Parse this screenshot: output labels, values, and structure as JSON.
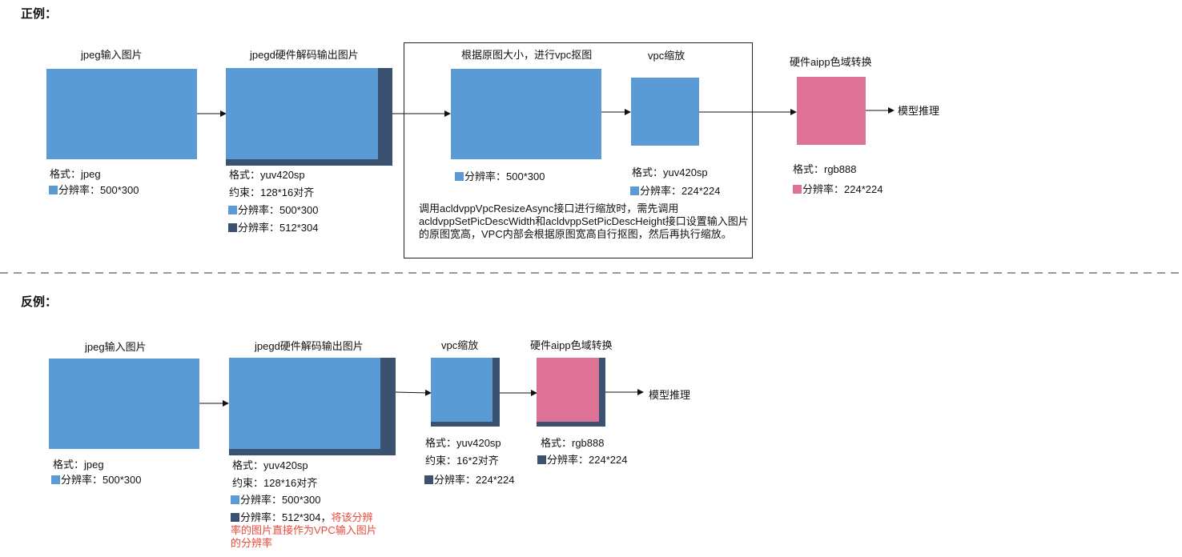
{
  "positive": {
    "heading": "正例：",
    "jpeg_title": "jpeg输入图片",
    "jpeg_format": "格式：jpeg",
    "jpeg_res": "分辨率：500*300",
    "jpegd_title": "jpegd硬件解码输出图片",
    "jpegd_format": "格式：yuv420sp",
    "jpegd_constraint": "约束：128*16对齐",
    "jpegd_res_a": "分辨率：500*300",
    "jpegd_res_b": "分辨率：512*304",
    "crop_title": "根据原图大小，进行vpc抠图",
    "crop_res": "分辨率：500*300",
    "vpc_title": "vpc缩放",
    "vpc_format": "格式：yuv420sp",
    "vpc_res": "分辨率：224*224",
    "vpc_note": "调用acldvppVpcResizeAsync接口进行缩放时，需先调用acldvppSetPicDescWidth和acldvppSetPicDescHeight接口设置输入图片的原图宽高，VPC内部会根据原图宽高自行抠图，然后再执行缩放。",
    "aipp_title": "硬件aipp色域转换",
    "aipp_format": "格式：rgb888",
    "aipp_res": "分辨率：224*224",
    "infer": "模型推理"
  },
  "negative": {
    "heading": "反例：",
    "jpeg_title": "jpeg输入图片",
    "jpeg_format": "格式：jpeg",
    "jpeg_res": "分辨率：500*300",
    "jpegd_title": "jpegd硬件解码输出图片",
    "jpegd_format": "格式：yuv420sp",
    "jpegd_constraint": "约束：128*16对齐",
    "jpegd_res_a": "分辨率：500*300",
    "jpegd_res_b": "分辨率：512*304，",
    "jpegd_warn": "将该分辨率的图片直接作为VPC输入图片的分辨率",
    "vpc_title": "vpc缩放",
    "vpc_format": "格式：yuv420sp",
    "vpc_constraint": "约束：16*2对齐",
    "vpc_res": "分辨率：224*224",
    "aipp_title": "硬件aipp色域转换",
    "aipp_format": "格式：rgb888",
    "aipp_res": "分辨率：224*224",
    "infer": "模型推理"
  },
  "colors": {
    "blue": "#5b9bd5",
    "dark": "#3a5170",
    "pink": "#de7196",
    "warn": "#e84a3b"
  }
}
